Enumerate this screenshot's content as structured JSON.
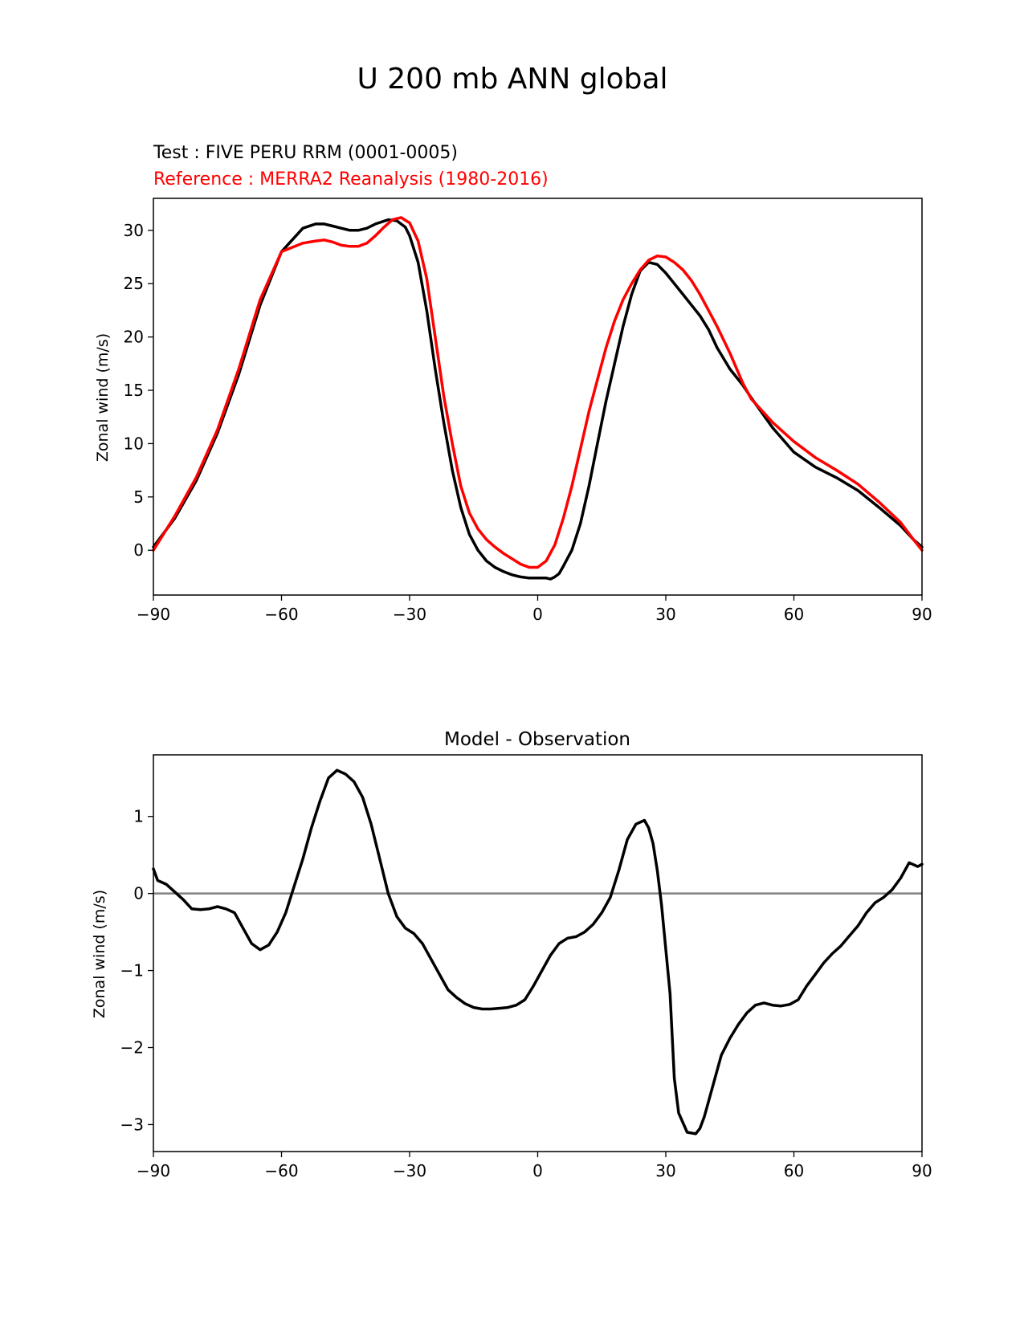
{
  "suptitle": "U 200 mb ANN global",
  "colors": {
    "test": "#000000",
    "reference": "#ff0000",
    "zero_line": "#808080",
    "axes": "#000000"
  },
  "chart_data": [
    {
      "type": "line",
      "test_label": "Test : FIVE PERU RRM (0001-0005)",
      "reference_label": "Reference : MERRA2 Reanalysis (1980-2016)",
      "ylabel": "Zonal wind (m/s)",
      "xlim": [
        -90,
        90
      ],
      "ylim": [
        -4.2,
        33
      ],
      "xticks": [
        -90,
        -60,
        -30,
        0,
        30,
        60,
        90
      ],
      "xtick_labels": [
        "−90",
        "−60",
        "−30",
        "0",
        "30",
        "60",
        "90"
      ],
      "yticks": [
        0,
        5,
        10,
        15,
        20,
        25,
        30
      ],
      "ytick_labels": [
        "0",
        "5",
        "10",
        "15",
        "20",
        "25",
        "30"
      ],
      "grid": false,
      "series": [
        {
          "key": "test",
          "color": "#000000",
          "x": [
            -90,
            -85,
            -80,
            -75,
            -70,
            -65,
            -60,
            -55,
            -52,
            -50,
            -48,
            -46,
            -44,
            -42,
            -40,
            -38,
            -35,
            -33,
            -31,
            -30,
            -28,
            -26,
            -24,
            -22,
            -20,
            -18,
            -16,
            -14,
            -12,
            -10,
            -8,
            -6,
            -4,
            -2,
            0,
            2,
            3,
            4,
            5,
            6,
            8,
            10,
            12,
            14,
            16,
            18,
            20,
            22,
            24,
            26,
            28,
            30,
            32,
            34,
            36,
            38,
            40,
            42,
            45,
            48,
            50,
            55,
            60,
            65,
            70,
            75,
            80,
            85,
            88,
            90
          ],
          "y": [
            0.3,
            3.0,
            6.5,
            11.0,
            16.5,
            23.0,
            28.0,
            30.2,
            30.6,
            30.6,
            30.4,
            30.2,
            30.0,
            30.0,
            30.2,
            30.6,
            31.0,
            30.9,
            30.3,
            29.5,
            27.0,
            22.5,
            17.0,
            12.0,
            7.5,
            4.0,
            1.5,
            0.0,
            -1.0,
            -1.6,
            -2.0,
            -2.3,
            -2.5,
            -2.6,
            -2.6,
            -2.6,
            -2.7,
            -2.5,
            -2.2,
            -1.5,
            0.0,
            2.5,
            6.0,
            10.0,
            14.0,
            17.5,
            21.0,
            24.0,
            26.2,
            27.0,
            26.8,
            26.0,
            25.0,
            24.0,
            23.0,
            22.0,
            20.7,
            19.0,
            17.0,
            15.5,
            14.3,
            11.5,
            9.2,
            7.8,
            6.8,
            5.6,
            4.0,
            2.3,
            1.0,
            0.3
          ]
        },
        {
          "key": "reference",
          "color": "#ff0000",
          "x": [
            -90,
            -85,
            -80,
            -75,
            -70,
            -65,
            -60,
            -55,
            -52,
            -50,
            -48,
            -46,
            -44,
            -42,
            -40,
            -38,
            -36,
            -34,
            -32,
            -30,
            -28,
            -26,
            -24,
            -22,
            -20,
            -18,
            -16,
            -14,
            -12,
            -10,
            -8,
            -6,
            -4,
            -2,
            0,
            2,
            4,
            6,
            8,
            10,
            12,
            14,
            16,
            18,
            20,
            22,
            24,
            26,
            28,
            30,
            32,
            34,
            36,
            38,
            40,
            42,
            45,
            48,
            50,
            55,
            60,
            65,
            70,
            75,
            80,
            85,
            88,
            90
          ],
          "y": [
            0.0,
            3.2,
            6.8,
            11.3,
            17.0,
            23.5,
            28.0,
            28.8,
            29.0,
            29.1,
            28.9,
            28.6,
            28.5,
            28.5,
            28.8,
            29.5,
            30.3,
            31.0,
            31.2,
            30.7,
            29.0,
            25.5,
            20.0,
            14.5,
            10.0,
            6.0,
            3.5,
            2.0,
            1.0,
            0.3,
            -0.3,
            -0.8,
            -1.3,
            -1.6,
            -1.6,
            -1.0,
            0.5,
            3.0,
            6.0,
            9.5,
            13.0,
            16.0,
            19.0,
            21.5,
            23.5,
            25.0,
            26.3,
            27.2,
            27.6,
            27.5,
            27.0,
            26.3,
            25.3,
            24.0,
            22.5,
            21.0,
            18.5,
            15.7,
            14.2,
            12.0,
            10.2,
            8.7,
            7.5,
            6.2,
            4.5,
            2.6,
            1.0,
            0.0
          ]
        }
      ]
    },
    {
      "type": "line",
      "title": "Model - Observation",
      "ylabel": "Zonal wind (m/s)",
      "xlim": [
        -90,
        90
      ],
      "ylim": [
        -3.35,
        1.8
      ],
      "xticks": [
        -90,
        -60,
        -30,
        0,
        30,
        60,
        90
      ],
      "xtick_labels": [
        "−90",
        "−60",
        "−30",
        "0",
        "30",
        "60",
        "90"
      ],
      "yticks": [
        -3,
        -2,
        -1,
        0,
        1
      ],
      "ytick_labels": [
        "−3",
        "−2",
        "−1",
        "0",
        "1"
      ],
      "grid": false,
      "zero_line": true,
      "series": [
        {
          "key": "difference",
          "color": "#000000",
          "x": [
            -90,
            -89,
            -87,
            -85,
            -83,
            -81,
            -79,
            -77,
            -75,
            -73,
            -71,
            -69,
            -67,
            -65,
            -63,
            -61,
            -59,
            -57,
            -55,
            -53,
            -51,
            -49,
            -47,
            -45,
            -43,
            -41,
            -39,
            -37,
            -35,
            -33,
            -31,
            -29,
            -27,
            -25,
            -23,
            -21,
            -19,
            -17,
            -15,
            -13,
            -11,
            -9,
            -7,
            -5,
            -3,
            -1,
            1,
            3,
            5,
            7,
            9,
            11,
            13,
            15,
            17,
            19,
            21,
            23,
            25,
            26,
            27,
            28,
            29,
            31,
            32,
            33,
            35,
            37,
            38,
            39,
            40,
            41,
            42,
            43,
            45,
            47,
            49,
            51,
            53,
            55,
            57,
            59,
            61,
            63,
            65,
            67,
            69,
            71,
            73,
            75,
            77,
            79,
            81,
            83,
            85,
            87,
            89,
            90
          ],
          "y": [
            0.32,
            0.17,
            0.12,
            0.02,
            -0.08,
            -0.2,
            -0.21,
            -0.2,
            -0.17,
            -0.2,
            -0.25,
            -0.45,
            -0.65,
            -0.73,
            -0.67,
            -0.5,
            -0.25,
            0.1,
            0.45,
            0.85,
            1.2,
            1.5,
            1.6,
            1.55,
            1.45,
            1.25,
            0.9,
            0.45,
            0.0,
            -0.3,
            -0.45,
            -0.52,
            -0.65,
            -0.85,
            -1.05,
            -1.25,
            -1.35,
            -1.43,
            -1.48,
            -1.5,
            -1.5,
            -1.49,
            -1.48,
            -1.45,
            -1.38,
            -1.2,
            -1.0,
            -0.8,
            -0.65,
            -0.58,
            -0.56,
            -0.5,
            -0.4,
            -0.25,
            -0.05,
            0.3,
            0.7,
            0.9,
            0.95,
            0.85,
            0.65,
            0.3,
            -0.15,
            -1.3,
            -2.4,
            -2.85,
            -3.1,
            -3.12,
            -3.05,
            -2.9,
            -2.7,
            -2.5,
            -2.3,
            -2.1,
            -1.88,
            -1.7,
            -1.55,
            -1.45,
            -1.42,
            -1.45,
            -1.46,
            -1.44,
            -1.38,
            -1.2,
            -1.05,
            -0.9,
            -0.78,
            -0.68,
            -0.55,
            -0.42,
            -0.25,
            -0.12,
            -0.05,
            0.05,
            0.2,
            0.4,
            0.35,
            0.38
          ]
        }
      ]
    }
  ]
}
